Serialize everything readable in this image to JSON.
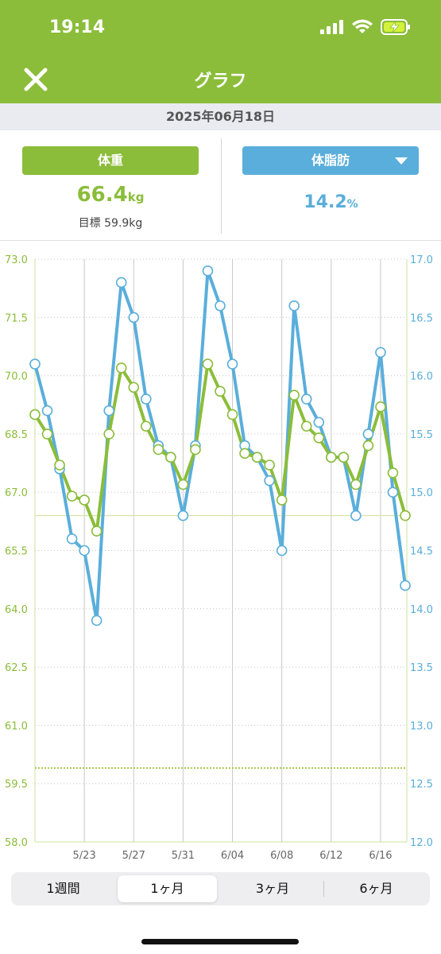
{
  "status": {
    "time": "19:14"
  },
  "nav": {
    "title": "グラフ"
  },
  "date": "2025年06月18日",
  "weight": {
    "label": "体重",
    "value": "66.4",
    "unit": "kg",
    "goal": "目標 59.9kg"
  },
  "fat": {
    "label": "体脂肪",
    "value": "14.2",
    "unit": "%"
  },
  "colors": {
    "green": "#8bbd3a",
    "blue": "#5aaedb"
  },
  "chart_data": {
    "type": "line",
    "x": [
      "5/19",
      "5/20",
      "5/21",
      "5/22",
      "5/23",
      "5/24",
      "5/25",
      "5/26",
      "5/27",
      "5/28",
      "5/29",
      "5/30",
      "5/31",
      "6/01",
      "6/02",
      "6/03",
      "6/04",
      "6/05",
      "6/06",
      "6/07",
      "6/08",
      "6/09",
      "6/10",
      "6/11",
      "6/12",
      "6/13",
      "6/14",
      "6/15",
      "6/16",
      "6/17",
      "6/18"
    ],
    "x_ticks": [
      "5/23",
      "5/27",
      "5/31",
      "6/04",
      "6/08",
      "6/12",
      "6/16"
    ],
    "left_axis": {
      "ticks": [
        "73.0",
        "71.5",
        "70.0",
        "68.5",
        "67.0",
        "65.5",
        "64.0",
        "62.5",
        "61.0",
        "59.5",
        "58.0"
      ],
      "ylim": [
        58.0,
        73.0
      ]
    },
    "right_axis": {
      "ticks": [
        "17.0",
        "16.5",
        "16.0",
        "15.5",
        "15.0",
        "14.5",
        "14.0",
        "13.5",
        "13.0",
        "12.5",
        "12.0"
      ],
      "ylim": [
        12.0,
        17.0
      ]
    },
    "series": [
      {
        "name": "体重",
        "axis": "left",
        "values": [
          69.0,
          68.5,
          67.7,
          66.9,
          66.8,
          66.0,
          68.5,
          70.2,
          69.7,
          68.7,
          68.1,
          67.9,
          67.2,
          68.1,
          70.3,
          69.6,
          69.0,
          68.0,
          67.9,
          67.7,
          66.8,
          69.5,
          68.7,
          68.4,
          67.9,
          67.9,
          67.2,
          68.2,
          69.2,
          67.5,
          66.4
        ]
      },
      {
        "name": "体脂肪",
        "axis": "right",
        "values": [
          16.1,
          15.7,
          15.2,
          14.6,
          14.5,
          13.9,
          15.7,
          16.8,
          16.5,
          15.8,
          15.4,
          15.3,
          14.8,
          15.4,
          16.9,
          16.6,
          16.1,
          15.4,
          15.3,
          15.1,
          14.5,
          16.6,
          15.8,
          15.6,
          15.3,
          15.3,
          14.8,
          15.5,
          16.2,
          15.0,
          14.2
        ]
      }
    ],
    "reference_lines": [
      {
        "value": 66.4,
        "style": "solid"
      },
      {
        "value": 59.9,
        "style": "dotted"
      }
    ]
  },
  "periods": [
    "1週間",
    "1ヶ月",
    "3ヶ月",
    "6ヶ月"
  ],
  "active_period": "1ヶ月"
}
